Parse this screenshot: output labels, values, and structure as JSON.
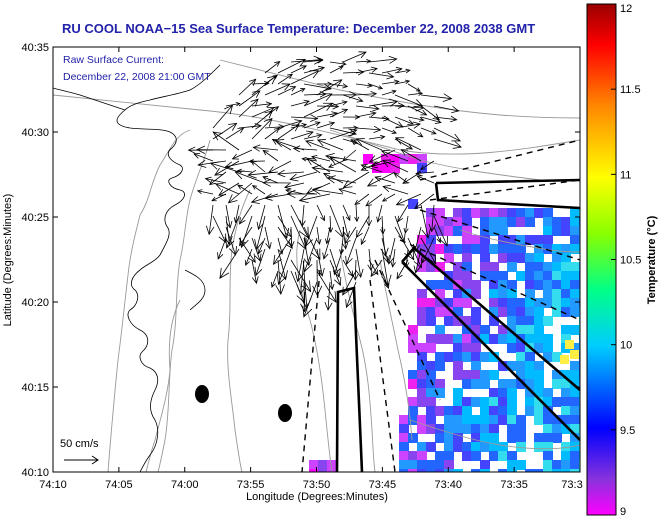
{
  "chart_data": {
    "type": "map-overlay",
    "title": "RU COOL  NOAA−15  Sea Surface Temperature:  December 22, 2008 2038 GMT",
    "overlay_label_1": "Raw Surface Current:",
    "overlay_label_2": "December 22, 2008 21:00 GMT",
    "xlabel": "Longitude (Degrees:Minutes)",
    "ylabel": "Latitude (Degrees:Minutes)",
    "x_ticks": [
      "74:10",
      "74:05",
      "74:00",
      "73:55",
      "73:50",
      "73:45",
      "73:40",
      "73:35",
      "73:3"
    ],
    "y_ticks": [
      "40:35",
      "40:30",
      "40:25",
      "40:20",
      "40:15",
      "40:10"
    ],
    "xlim_deg": [
      -74.1667,
      -73.5333
    ],
    "ylim_deg": [
      40.1667,
      40.5833
    ],
    "scale_label": "50 cm/s",
    "colorbar": {
      "label": "Temperature (°C)",
      "min": 9,
      "max": 12,
      "tick_labels": [
        "12",
        "11.5",
        "11",
        "10.5",
        "10",
        "9.5",
        "9"
      ],
      "tick_values": [
        12,
        11.5,
        11,
        10.5,
        10,
        9.5,
        9
      ]
    }
  }
}
